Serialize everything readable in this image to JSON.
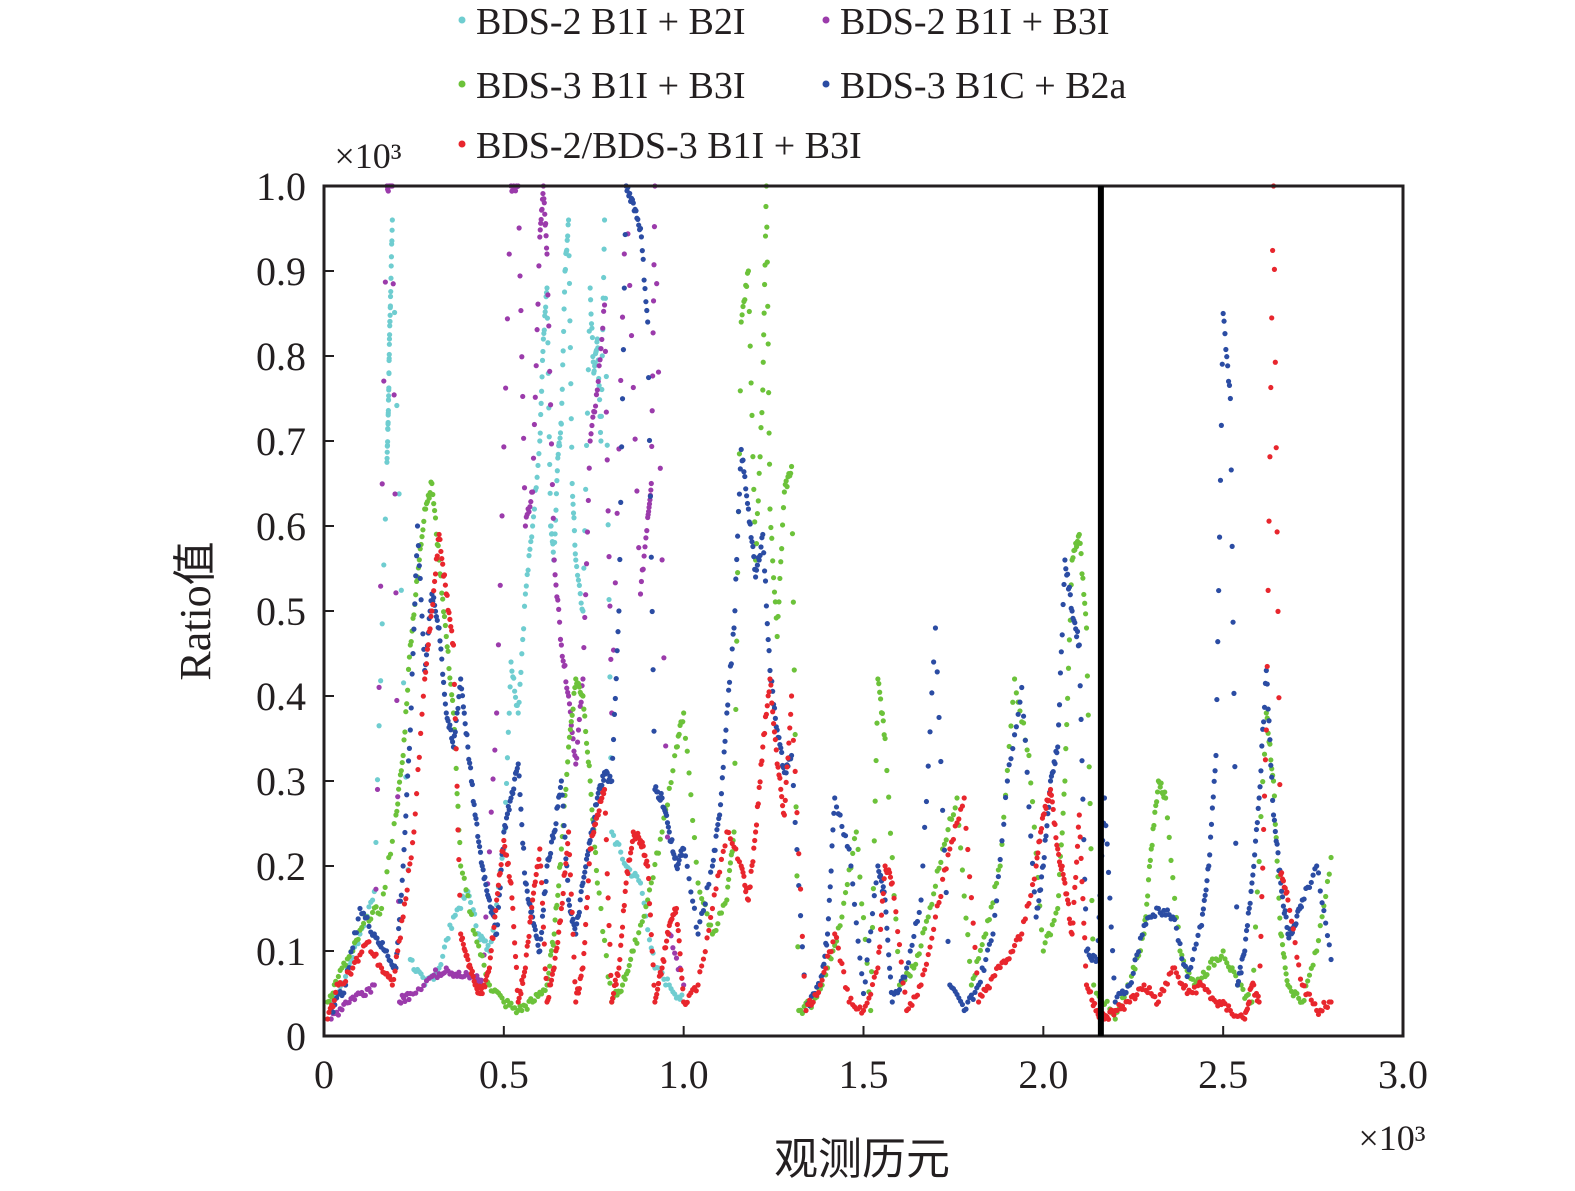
{
  "chart_data": {
    "type": "scatter",
    "title": "",
    "xlabel": "观测历元",
    "ylabel": "Ratio值",
    "x_multiplier": "×10³",
    "y_multiplier": "×10³",
    "xlim": [
      0,
      3000
    ],
    "ylim": [
      0,
      1000
    ],
    "x_ticks": [
      "0",
      "0.5",
      "1.0",
      "1.5",
      "2.0",
      "2.5",
      "3.0"
    ],
    "y_ticks": [
      "0",
      "0.1",
      "0.2",
      "0.3",
      "0.4",
      "0.5",
      "0.6",
      "0.7",
      "0.8",
      "0.9",
      "1.0"
    ],
    "separator_x": 2160,
    "grid": false,
    "legend_position": "top",
    "series": [
      {
        "name": "BDS-2 B1I + B2I",
        "color": "#6fcdd0",
        "x": [
          20,
          60,
          100,
          140,
          175,
          178,
          180,
          182,
          185,
          190,
          240,
          280,
          320,
          360,
          400,
          430,
          460,
          500,
          520,
          540,
          560,
          580,
          600,
          610,
          620,
          630,
          640,
          650,
          660,
          670,
          680,
          690,
          700,
          720,
          740,
          750,
          760,
          770,
          780,
          800,
          840,
          880,
          920,
          960,
          1000
        ],
        "y": [
          40,
          70,
          120,
          170,
          675,
          720,
          760,
          820,
          870,
          960,
          90,
          60,
          80,
          140,
          170,
          120,
          100,
          220,
          440,
          380,
          520,
          600,
          700,
          820,
          880,
          600,
          560,
          680,
          720,
          900,
          960,
          650,
          560,
          500,
          880,
          780,
          820,
          700,
          960,
          240,
          200,
          180,
          80,
          60,
          40
        ]
      },
      {
        "name": "BDS-2 B1I + B3I",
        "color": "#9b3bab",
        "x": [
          20,
          60,
          100,
          140,
          175,
          190,
          210,
          240,
          300,
          340,
          380,
          420,
          440,
          480,
          520,
          540,
          560,
          580,
          600,
          610,
          620,
          640,
          660,
          680,
          700,
          720,
          740,
          760,
          780,
          800,
          840,
          880,
          900,
          910,
          920,
          960,
          1000
        ],
        "y": [
          20,
          40,
          50,
          60,
          1000,
          1000,
          40,
          50,
          70,
          80,
          70,
          70,
          60,
          380,
          1000,
          1000,
          600,
          640,
          940,
          1000,
          920,
          560,
          460,
          400,
          320,
          420,
          700,
          760,
          860,
          380,
          1000,
          520,
          610,
          650,
          1000,
          120,
          60
        ]
      },
      {
        "name": "BDS-3 B1I + B3I",
        "color": "#6cc23a",
        "x": [
          10,
          40,
          80,
          120,
          160,
          200,
          220,
          240,
          260,
          280,
          300,
          320,
          340,
          360,
          380,
          420,
          460,
          500,
          540,
          580,
          620,
          640,
          660,
          680,
          700,
          720,
          740,
          760,
          800,
          830,
          860,
          900,
          940,
          980,
          1000,
          1040,
          1080,
          1120,
          1140,
          1160,
          1180,
          1200,
          1220,
          1230,
          1240,
          1260,
          1280,
          1300,
          1320,
          1360,
          1400,
          1440,
          1480,
          1520,
          1540,
          1560,
          1600,
          1640,
          1680,
          1720,
          1760,
          1800,
          1840,
          1880,
          1920,
          1960,
          2000,
          2040,
          2060,
          2080,
          2100,
          2120,
          2140,
          2200,
          2240,
          2280,
          2300,
          2320,
          2340,
          2380,
          2420,
          2460,
          2500,
          2540,
          2580,
          2620,
          2640,
          2660,
          2680,
          2720,
          2760,
          2800
        ],
        "y": [
          40,
          70,
          100,
          140,
          150,
          260,
          330,
          460,
          540,
          620,
          650,
          560,
          470,
          380,
          200,
          120,
          60,
          40,
          30,
          40,
          60,
          120,
          220,
          340,
          420,
          400,
          300,
          180,
          40,
          60,
          100,
          160,
          240,
          340,
          380,
          180,
          120,
          160,
          240,
          840,
          900,
          560,
          760,
          1000,
          620,
          470,
          640,
          670,
          30,
          40,
          80,
          140,
          240,
          30,
          420,
          350,
          60,
          80,
          140,
          220,
          280,
          60,
          120,
          200,
          420,
          330,
          100,
          150,
          300,
          560,
          590,
          480,
          60,
          20,
          60,
          120,
          220,
          300,
          280,
          100,
          60,
          80,
          100,
          60,
          40,
          380,
          300,
          120,
          60,
          40,
          100,
          210
        ]
      },
      {
        "name": "BDS-3 B1C + B2a",
        "color": "#2b4ca3",
        "x": [
          20,
          60,
          100,
          140,
          170,
          200,
          220,
          240,
          260,
          280,
          300,
          320,
          340,
          360,
          380,
          400,
          420,
          440,
          460,
          480,
          500,
          520,
          540,
          560,
          580,
          600,
          620,
          640,
          660,
          680,
          700,
          720,
          740,
          760,
          780,
          800,
          820,
          840,
          860,
          880,
          900,
          920,
          940,
          960,
          980,
          1000,
          1040,
          1080,
          1100,
          1120,
          1140,
          1160,
          1180,
          1200,
          1220,
          1240,
          1260,
          1280,
          1300,
          1340,
          1380,
          1400,
          1420,
          1460,
          1500,
          1540,
          1560,
          1580,
          1620,
          1660,
          1700,
          1740,
          1780,
          1820,
          1860,
          1900,
          1940,
          1980,
          2000,
          2020,
          2040,
          2060,
          2080,
          2100,
          2120,
          2150,
          2170,
          2200,
          2240,
          2280,
          2320,
          2360,
          2400,
          2440,
          2460,
          2480,
          2500,
          2520,
          2540,
          2560,
          2580,
          2600,
          2620,
          2640,
          2660,
          2680,
          2700,
          2720,
          2760,
          2800
        ],
        "y": [
          30,
          60,
          150,
          120,
          100,
          80,
          200,
          360,
          600,
          430,
          520,
          480,
          380,
          340,
          420,
          340,
          260,
          200,
          160,
          120,
          240,
          280,
          320,
          180,
          140,
          100,
          200,
          240,
          300,
          160,
          120,
          180,
          230,
          280,
          310,
          300,
          500,
          1000,
          980,
          950,
          840,
          290,
          280,
          240,
          200,
          220,
          120,
          200,
          260,
          380,
          480,
          690,
          620,
          540,
          590,
          430,
          360,
          310,
          330,
          30,
          60,
          120,
          280,
          220,
          50,
          200,
          160,
          40,
          80,
          160,
          480,
          60,
          30,
          60,
          120,
          300,
          410,
          140,
          200,
          300,
          340,
          560,
          500,
          460,
          100,
          90,
          280,
          40,
          60,
          130,
          150,
          140,
          70,
          130,
          200,
          330,
          850,
          750,
          60,
          100,
          180,
          280,
          430,
          260,
          180,
          120,
          130,
          160,
          200,
          90
        ]
      },
      {
        "name": "BDS-2/BDS-3 B1I + B3I",
        "color": "#e8262d",
        "x": [
          10,
          40,
          80,
          120,
          160,
          190,
          220,
          250,
          280,
          300,
          320,
          340,
          360,
          380,
          400,
          420,
          440,
          460,
          480,
          500,
          520,
          540,
          560,
          580,
          600,
          620,
          640,
          660,
          680,
          700,
          720,
          740,
          760,
          780,
          800,
          820,
          840,
          860,
          880,
          900,
          920,
          940,
          960,
          980,
          1000,
          1040,
          1080,
          1120,
          1160,
          1180,
          1200,
          1220,
          1240,
          1260,
          1280,
          1300,
          1340,
          1380,
          1420,
          1460,
          1500,
          1540,
          1560,
          1580,
          1620,
          1660,
          1700,
          1740,
          1780,
          1820,
          1860,
          1900,
          1940,
          1980,
          2000,
          2020,
          2040,
          2060,
          2080,
          2100,
          2120,
          2150,
          2170,
          2200,
          2240,
          2280,
          2320,
          2360,
          2400,
          2440,
          2480,
          2520,
          2560,
          2580,
          2600,
          2620,
          2640,
          2660,
          2680,
          2720,
          2760,
          2800
        ],
        "y": [
          20,
          60,
          80,
          110,
          80,
          60,
          140,
          240,
          420,
          500,
          590,
          520,
          460,
          120,
          90,
          60,
          50,
          80,
          160,
          230,
          180,
          40,
          80,
          160,
          220,
          40,
          80,
          150,
          240,
          40,
          80,
          220,
          260,
          290,
          40,
          80,
          180,
          240,
          230,
          200,
          40,
          80,
          130,
          150,
          40,
          60,
          150,
          240,
          200,
          160,
          240,
          340,
          420,
          320,
          260,
          400,
          30,
          60,
          120,
          40,
          30,
          80,
          200,
          180,
          30,
          60,
          140,
          220,
          280,
          40,
          70,
          90,
          120,
          200,
          260,
          290,
          220,
          180,
          120,
          260,
          60,
          30,
          20,
          30,
          40,
          60,
          40,
          80,
          50,
          60,
          40,
          30,
          20,
          60,
          40,
          360,
          1000,
          190,
          160,
          60,
          30,
          40
        ]
      }
    ]
  }
}
